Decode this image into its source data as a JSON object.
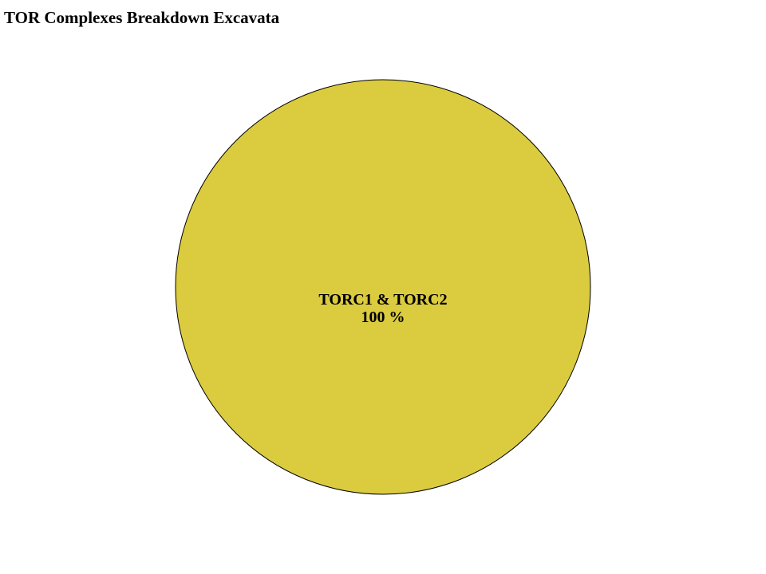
{
  "chart_data": {
    "type": "pie",
    "title": "TOR Complexes Breakdown Excavata",
    "slices": [
      {
        "label": "TORC1 & TORC2",
        "value": 100,
        "value_label": "100 %",
        "color": "#dbcb3f"
      }
    ],
    "stroke_color": "#000000",
    "legend": "none"
  }
}
